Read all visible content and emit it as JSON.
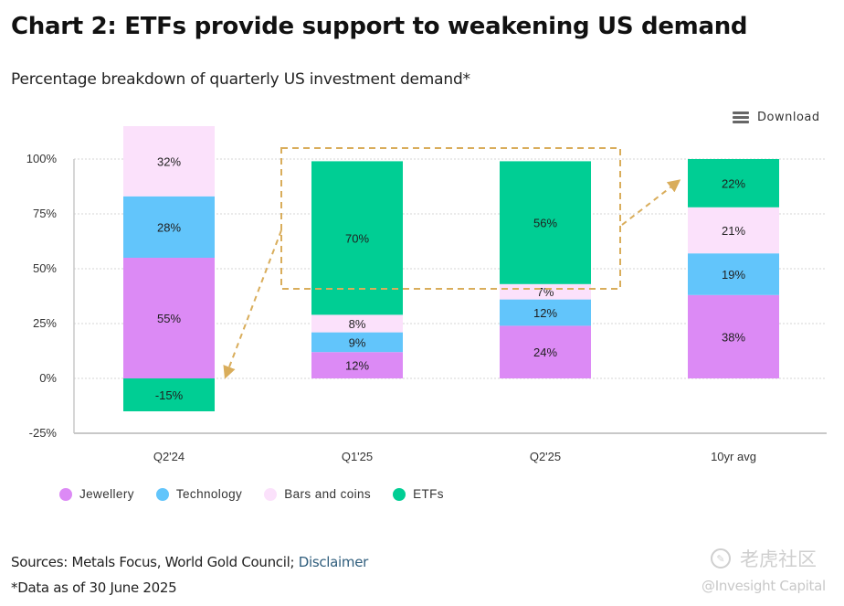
{
  "header": {
    "title": "Chart 2: ETFs provide support to weakening US demand",
    "subtitle": "Percentage breakdown of quarterly US investment demand*"
  },
  "toolbar": {
    "download_label": "Download",
    "download_icon": "hamburger-menu-icon"
  },
  "chart_data": {
    "type": "bar",
    "stacked": true,
    "title": "Chart 2: ETFs provide support to weakening US demand",
    "subtitle": "Percentage breakdown of quarterly US investment demand*",
    "xlabel": "",
    "ylabel": "",
    "categories": [
      "Q2'24",
      "Q1'25",
      "Q2'25",
      "10yr avg"
    ],
    "ylim": [
      -25,
      100
    ],
    "yticks": [
      -25,
      0,
      25,
      50,
      75,
      100
    ],
    "ytick_labels": [
      "-25%",
      "0%",
      "25%",
      "50%",
      "75%",
      "100%"
    ],
    "grid": true,
    "legend_position": "bottom-left",
    "series": [
      {
        "name": "Jewellery",
        "color": "#dc8af5",
        "values": [
          55,
          12,
          24,
          38
        ],
        "labels": [
          "55%",
          "12%",
          "24%",
          "38%"
        ]
      },
      {
        "name": "Technology",
        "color": "#62c5fb",
        "values": [
          28,
          9,
          12,
          19
        ],
        "labels": [
          "28%",
          "9%",
          "12%",
          "19%"
        ]
      },
      {
        "name": "Bars and coins",
        "color": "#fbe1fb",
        "values": [
          32,
          8,
          7,
          21
        ],
        "labels": [
          "32%",
          "8%",
          "7%",
          "21%"
        ]
      },
      {
        "name": "ETFs",
        "color": "#00ce94",
        "values": [
          -15,
          70,
          56,
          22
        ],
        "labels": [
          "-15%",
          "70%",
          "56%",
          "22%"
        ]
      }
    ],
    "annotations": [
      {
        "type": "dashed-box",
        "around": "ETFs in Q1'25 and Q2'25",
        "color": "#d9ad5b"
      },
      {
        "type": "dashed-arrow",
        "from": "ETFs box",
        "to": "Q2'24 ETFs (-15%)",
        "color": "#d9ad5b"
      },
      {
        "type": "dashed-arrow",
        "from": "ETFs box",
        "to": "10yr avg ETFs (22%)",
        "color": "#d9ad5b"
      }
    ]
  },
  "footer": {
    "sources_prefix": "Sources: Metals Focus, World Gold Council; ",
    "disclaimer_link": "Disclaimer",
    "note": "*Data as of 30 June 2025"
  },
  "watermark": {
    "brand": "老虎社区",
    "handle": "@Invesight Capital"
  }
}
